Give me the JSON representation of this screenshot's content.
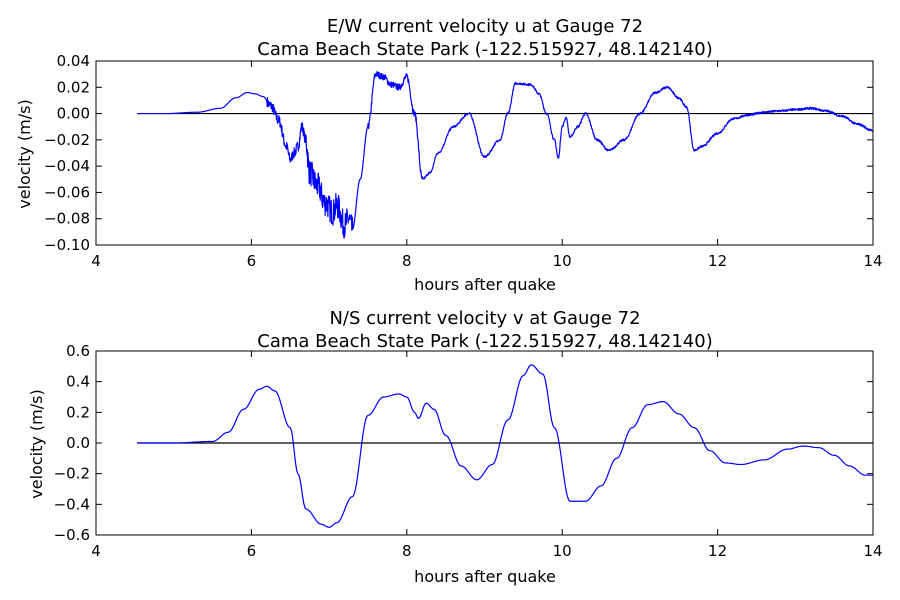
{
  "chart_data": [
    {
      "type": "line",
      "title": "E/W current velocity u at Gauge 72",
      "subtitle": "Cama Beach State Park  (-122.515927, 48.142140)",
      "xlabel": "hours after quake",
      "ylabel": "velocity (m/s)",
      "xlim": [
        4,
        14
      ],
      "ylim": [
        -0.1,
        0.04
      ],
      "xticks": [
        4,
        6,
        8,
        10,
        12,
        14
      ],
      "xtick_labels": [
        "4",
        "6",
        "8",
        "10",
        "12",
        "14"
      ],
      "yticks": [
        -0.1,
        -0.08,
        -0.06,
        -0.04,
        -0.02,
        0.0,
        0.02,
        0.04
      ],
      "ytick_labels": [
        "−0.10",
        "−0.08",
        "−0.06",
        "−0.04",
        "−0.02",
        "0.00",
        "0.02",
        "0.04"
      ],
      "grid": false,
      "reference_line": {
        "y": 0,
        "x": [
          4.53,
          14
        ],
        "color": "#000000"
      },
      "series": [
        {
          "color": "#0000ff",
          "noise": [
            {
              "x": [
                6.2,
                6.7
              ],
              "amp": 0.004
            },
            {
              "x": [
                6.7,
                7.3
              ],
              "amp": 0.01
            },
            {
              "x": [
                7.5,
                8.2
              ],
              "amp": 0.0025
            },
            {
              "x": [
                8.2,
                14.0
              ],
              "amp": 0.0008
            }
          ],
          "x": [
            4.53,
            4.9,
            5.3,
            5.6,
            5.8,
            5.95,
            6.05,
            6.15,
            6.25,
            6.35,
            6.45,
            6.5,
            6.55,
            6.6,
            6.65,
            6.7,
            6.75,
            6.85,
            6.95,
            7.05,
            7.1,
            7.2,
            7.25,
            7.3,
            7.4,
            7.5,
            7.6,
            7.7,
            7.8,
            7.9,
            8.0,
            8.1,
            8.2,
            8.3,
            8.4,
            8.6,
            8.8,
            9.0,
            9.2,
            9.3,
            9.4,
            9.6,
            9.7,
            9.8,
            9.9,
            9.95,
            10.0,
            10.05,
            10.1,
            10.2,
            10.3,
            10.45,
            10.6,
            10.8,
            11.0,
            11.2,
            11.35,
            11.5,
            11.6,
            11.7,
            11.8,
            12.0,
            12.2,
            12.4,
            12.6,
            12.8,
            13.0,
            13.2,
            13.4,
            13.6,
            13.8,
            14.0
          ],
          "y": [
            0.0,
            0.0,
            0.001,
            0.004,
            0.012,
            0.016,
            0.015,
            0.013,
            0.006,
            -0.005,
            -0.025,
            -0.035,
            -0.03,
            -0.025,
            -0.01,
            -0.02,
            -0.045,
            -0.055,
            -0.068,
            -0.075,
            -0.07,
            -0.085,
            -0.08,
            -0.088,
            -0.05,
            -0.01,
            0.03,
            0.028,
            0.022,
            0.02,
            0.028,
            0.0,
            -0.05,
            -0.045,
            -0.03,
            -0.01,
            0.0,
            -0.033,
            -0.02,
            0.0,
            0.023,
            0.022,
            0.015,
            0.0,
            -0.02,
            -0.034,
            -0.01,
            -0.003,
            -0.018,
            -0.01,
            0.0,
            -0.02,
            -0.028,
            -0.02,
            0.0,
            0.016,
            0.02,
            0.012,
            0.005,
            -0.028,
            -0.025,
            -0.015,
            -0.004,
            -0.001,
            0.001,
            0.002,
            0.003,
            0.004,
            0.002,
            -0.002,
            -0.008,
            -0.013
          ]
        }
      ]
    },
    {
      "type": "line",
      "title": "N/S current velocity v at Gauge 72",
      "subtitle": "Cama Beach State Park  (-122.515927, 48.142140)",
      "xlabel": "hours after quake",
      "ylabel": "velocity (m/s)",
      "xlim": [
        4,
        14
      ],
      "ylim": [
        -0.6,
        0.6
      ],
      "xticks": [
        4,
        6,
        8,
        10,
        12,
        14
      ],
      "xtick_labels": [
        "4",
        "6",
        "8",
        "10",
        "12",
        "14"
      ],
      "yticks": [
        -0.6,
        -0.4,
        -0.2,
        0.0,
        0.2,
        0.4,
        0.6
      ],
      "ytick_labels": [
        "−0.6",
        "−0.4",
        "−0.2",
        "0.0",
        "0.2",
        "0.4",
        "0.6"
      ],
      "grid": false,
      "reference_line": {
        "y": 0,
        "x": [
          4.53,
          14
        ],
        "color": "#000000"
      },
      "series": [
        {
          "color": "#0000ff",
          "x": [
            4.53,
            5.0,
            5.5,
            5.7,
            5.9,
            6.1,
            6.2,
            6.3,
            6.5,
            6.6,
            6.7,
            6.9,
            7.0,
            7.1,
            7.3,
            7.5,
            7.7,
            7.9,
            8.0,
            8.1,
            8.15,
            8.25,
            8.35,
            8.5,
            8.7,
            8.9,
            9.1,
            9.3,
            9.5,
            9.6,
            9.75,
            9.9,
            10.1,
            10.3,
            10.5,
            10.7,
            10.9,
            11.1,
            11.3,
            11.5,
            11.7,
            11.9,
            12.1,
            12.3,
            12.6,
            12.9,
            13.1,
            13.3,
            13.5,
            13.7,
            13.9,
            14.0
          ],
          "y": [
            0.0,
            0.0,
            0.01,
            0.07,
            0.22,
            0.35,
            0.37,
            0.34,
            0.1,
            -0.2,
            -0.43,
            -0.53,
            -0.55,
            -0.52,
            -0.35,
            0.18,
            0.3,
            0.32,
            0.3,
            0.2,
            0.16,
            0.26,
            0.22,
            0.05,
            -0.15,
            -0.24,
            -0.14,
            0.15,
            0.44,
            0.51,
            0.45,
            0.1,
            -0.38,
            -0.38,
            -0.28,
            -0.1,
            0.1,
            0.25,
            0.27,
            0.19,
            0.1,
            -0.05,
            -0.13,
            -0.14,
            -0.11,
            -0.04,
            -0.02,
            -0.03,
            -0.08,
            -0.15,
            -0.21,
            -0.21
          ]
        }
      ]
    }
  ]
}
